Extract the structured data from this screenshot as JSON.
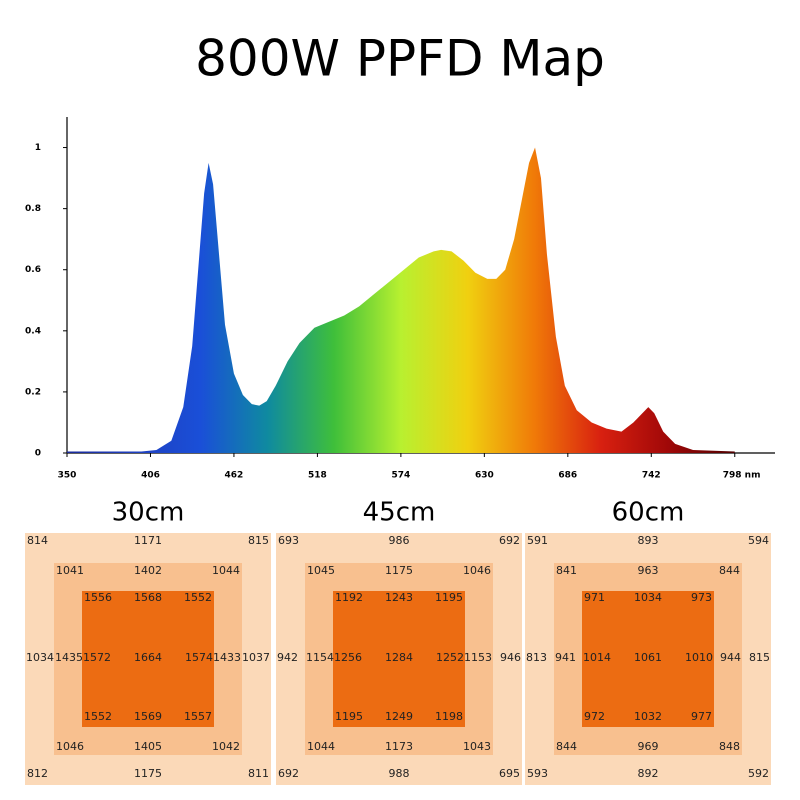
{
  "title": "800W PPFD Map",
  "chart_data": {
    "type": "area",
    "x": [
      350,
      380,
      400,
      410,
      420,
      428,
      434,
      438,
      442,
      445,
      448,
      452,
      456,
      462,
      468,
      474,
      479,
      484,
      490,
      498,
      506,
      516,
      526,
      536,
      546,
      556,
      566,
      576,
      586,
      596,
      601,
      608,
      616,
      624,
      632,
      638,
      644,
      650,
      656,
      660,
      664,
      668,
      672,
      678,
      684,
      692,
      702,
      712,
      722,
      730,
      736,
      740,
      744,
      750,
      758,
      770,
      798
    ],
    "y": [
      0.005,
      0.005,
      0.005,
      0.01,
      0.04,
      0.15,
      0.35,
      0.6,
      0.85,
      0.95,
      0.88,
      0.65,
      0.42,
      0.26,
      0.19,
      0.16,
      0.155,
      0.17,
      0.22,
      0.3,
      0.36,
      0.41,
      0.43,
      0.45,
      0.48,
      0.52,
      0.56,
      0.6,
      0.64,
      0.66,
      0.665,
      0.66,
      0.63,
      0.59,
      0.57,
      0.57,
      0.6,
      0.7,
      0.85,
      0.95,
      1.0,
      0.9,
      0.65,
      0.38,
      0.22,
      0.14,
      0.1,
      0.08,
      0.07,
      0.1,
      0.13,
      0.15,
      0.13,
      0.07,
      0.03,
      0.01,
      0.005
    ],
    "xlim": [
      350,
      825
    ],
    "ylim": [
      0,
      1.1
    ],
    "xticks": [
      350,
      406,
      462,
      518,
      574,
      630,
      686,
      742,
      {
        "value": 798,
        "label": "798 nm"
      }
    ],
    "yticks": [
      0,
      0.2,
      0.4,
      0.6,
      0.8,
      1
    ],
    "colors": [
      "#1a2a9a",
      "#1f3fbf",
      "#1a4fd8",
      "#0f8aa0",
      "#3fbf3a",
      "#b8f030",
      "#f0d010",
      "#f07a08",
      "#d82010",
      "#a00808",
      "#500000"
    ]
  },
  "maps": [
    {
      "label": "30cm",
      "rows": [
        [
          814,
          1171,
          815
        ],
        [
          1041,
          1402,
          1044
        ],
        [
          1556,
          1568,
          1552
        ],
        [
          1034,
          1435,
          1572,
          1664,
          1574,
          1433,
          1037
        ],
        [
          1552,
          1569,
          1557
        ],
        [
          1046,
          1405,
          1042
        ],
        [
          812,
          1175,
          811
        ]
      ]
    },
    {
      "label": "45cm",
      "rows": [
        [
          693,
          986,
          692
        ],
        [
          1045,
          1175,
          1046
        ],
        [
          1192,
          1243,
          1195
        ],
        [
          942,
          1154,
          1256,
          1284,
          1252,
          1153,
          946
        ],
        [
          1195,
          1249,
          1198
        ],
        [
          1044,
          1173,
          1043
        ],
        [
          692,
          988,
          695
        ]
      ]
    },
    {
      "label": "60cm",
      "rows": [
        [
          591,
          893,
          594
        ],
        [
          841,
          963,
          844
        ],
        [
          971,
          1034,
          973
        ],
        [
          813,
          941,
          1014,
          1061,
          1010,
          944,
          815
        ],
        [
          972,
          1032,
          977
        ],
        [
          844,
          969,
          848
        ],
        [
          593,
          892,
          592
        ]
      ]
    }
  ],
  "map_colors": [
    "#fbd9b8",
    "#f8c08f",
    "#ec6c12"
  ]
}
